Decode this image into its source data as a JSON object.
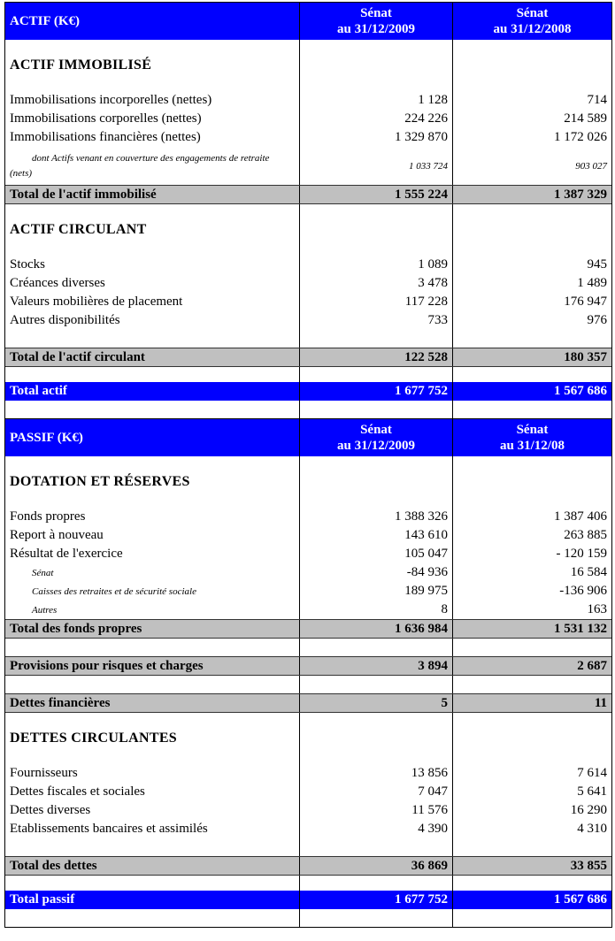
{
  "rows": [
    {
      "type": "header",
      "label": "ACTIF (K€)",
      "v1": "Sénat\nau 31/12/2009",
      "v2": "Sénat\nau 31/12/2008"
    },
    {
      "type": "section",
      "label": "ACTIF IMMOBILISÉ"
    },
    {
      "type": "item",
      "label": "Immobilisations incorporelles (nettes)",
      "v1": "1 128",
      "v2": "714"
    },
    {
      "type": "item",
      "label": "Immobilisations corporelles (nettes)",
      "v1": "224 226",
      "v2": "214 589"
    },
    {
      "type": "item",
      "label": "Immobilisations financières (nettes)",
      "v1": "1 329 870",
      "v2": "1 172 026"
    },
    {
      "type": "note",
      "label": "dont Actifs venant en couverture des engagements de retraite (nets)",
      "v1": "1 033 724",
      "v2": "903 027"
    },
    {
      "type": "total",
      "label": "Total de l'actif immobilisé",
      "v1": "1 555 224",
      "v2": "1 387 329"
    },
    {
      "type": "section",
      "label": "ACTIF CIRCULANT"
    },
    {
      "type": "item",
      "label": "Stocks",
      "v1": "1 089",
      "v2": "945"
    },
    {
      "type": "item",
      "label": "Créances diverses",
      "v1": "3 478",
      "v2": "1 489"
    },
    {
      "type": "item",
      "label": "Valeurs mobilières de placement",
      "v1": "117 228",
      "v2": "176 947"
    },
    {
      "type": "item",
      "label": "Autres disponibilités",
      "v1": "733",
      "v2": "976"
    },
    {
      "type": "blank"
    },
    {
      "type": "total",
      "label": "Total de l'actif circulant",
      "v1": "122 528",
      "v2": "180 357"
    },
    {
      "type": "blank-s"
    },
    {
      "type": "grand",
      "label": "Total actif",
      "v1": "1 677 752",
      "v2": "1 567 686"
    },
    {
      "type": "blank"
    },
    {
      "type": "header",
      "label": "PASSIF (K€)",
      "v1": "Sénat\nau 31/12/2009",
      "v2": "Sénat\nau 31/12/08"
    },
    {
      "type": "section",
      "label": "DOTATION ET RÉSERVES"
    },
    {
      "type": "item",
      "label": "Fonds propres",
      "v1": "1 388 326",
      "v2": "1 387 406"
    },
    {
      "type": "item",
      "label": "Report à nouveau",
      "v1": "143 610",
      "v2": "263 885"
    },
    {
      "type": "item",
      "label": "Résultat de l'exercice",
      "v1": "105 047",
      "v2": "- 120 159"
    },
    {
      "type": "sub",
      "label": "Sénat",
      "v1": "-84 936",
      "v2": "16 584"
    },
    {
      "type": "sub",
      "label": "Caisses des retraites et de sécurité sociale",
      "v1": "189 975",
      "v2": "-136 906"
    },
    {
      "type": "sub",
      "label": "Autres",
      "v1": "8",
      "v2": "163"
    },
    {
      "type": "total",
      "label": "Total des fonds propres",
      "v1": "1 636 984",
      "v2": "1 531 132"
    },
    {
      "type": "blank"
    },
    {
      "type": "total",
      "label": "Provisions pour risques et charges",
      "v1": "3 894",
      "v2": "2 687"
    },
    {
      "type": "blank"
    },
    {
      "type": "total",
      "label": "Dettes financières",
      "v1": "5",
      "v2": "11"
    },
    {
      "type": "section",
      "label": "DETTES CIRCULANTES"
    },
    {
      "type": "item",
      "label": "Fournisseurs",
      "v1": "13 856",
      "v2": "7 614"
    },
    {
      "type": "item",
      "label": "Dettes fiscales et sociales",
      "v1": "7 047",
      "v2": "5 641"
    },
    {
      "type": "item",
      "label": "Dettes diverses",
      "v1": "11 576",
      "v2": "16 290"
    },
    {
      "type": "item",
      "label": "Etablissements bancaires et assimilés",
      "v1": "4 390",
      "v2": "4 310"
    },
    {
      "type": "blank"
    },
    {
      "type": "total",
      "label": "Total des dettes",
      "v1": "36 869",
      "v2": "33 855"
    },
    {
      "type": "blank-s"
    },
    {
      "type": "grand",
      "label": "Total passif",
      "v1": "1 677 752",
      "v2": "1 567 686"
    },
    {
      "type": "blank"
    }
  ]
}
